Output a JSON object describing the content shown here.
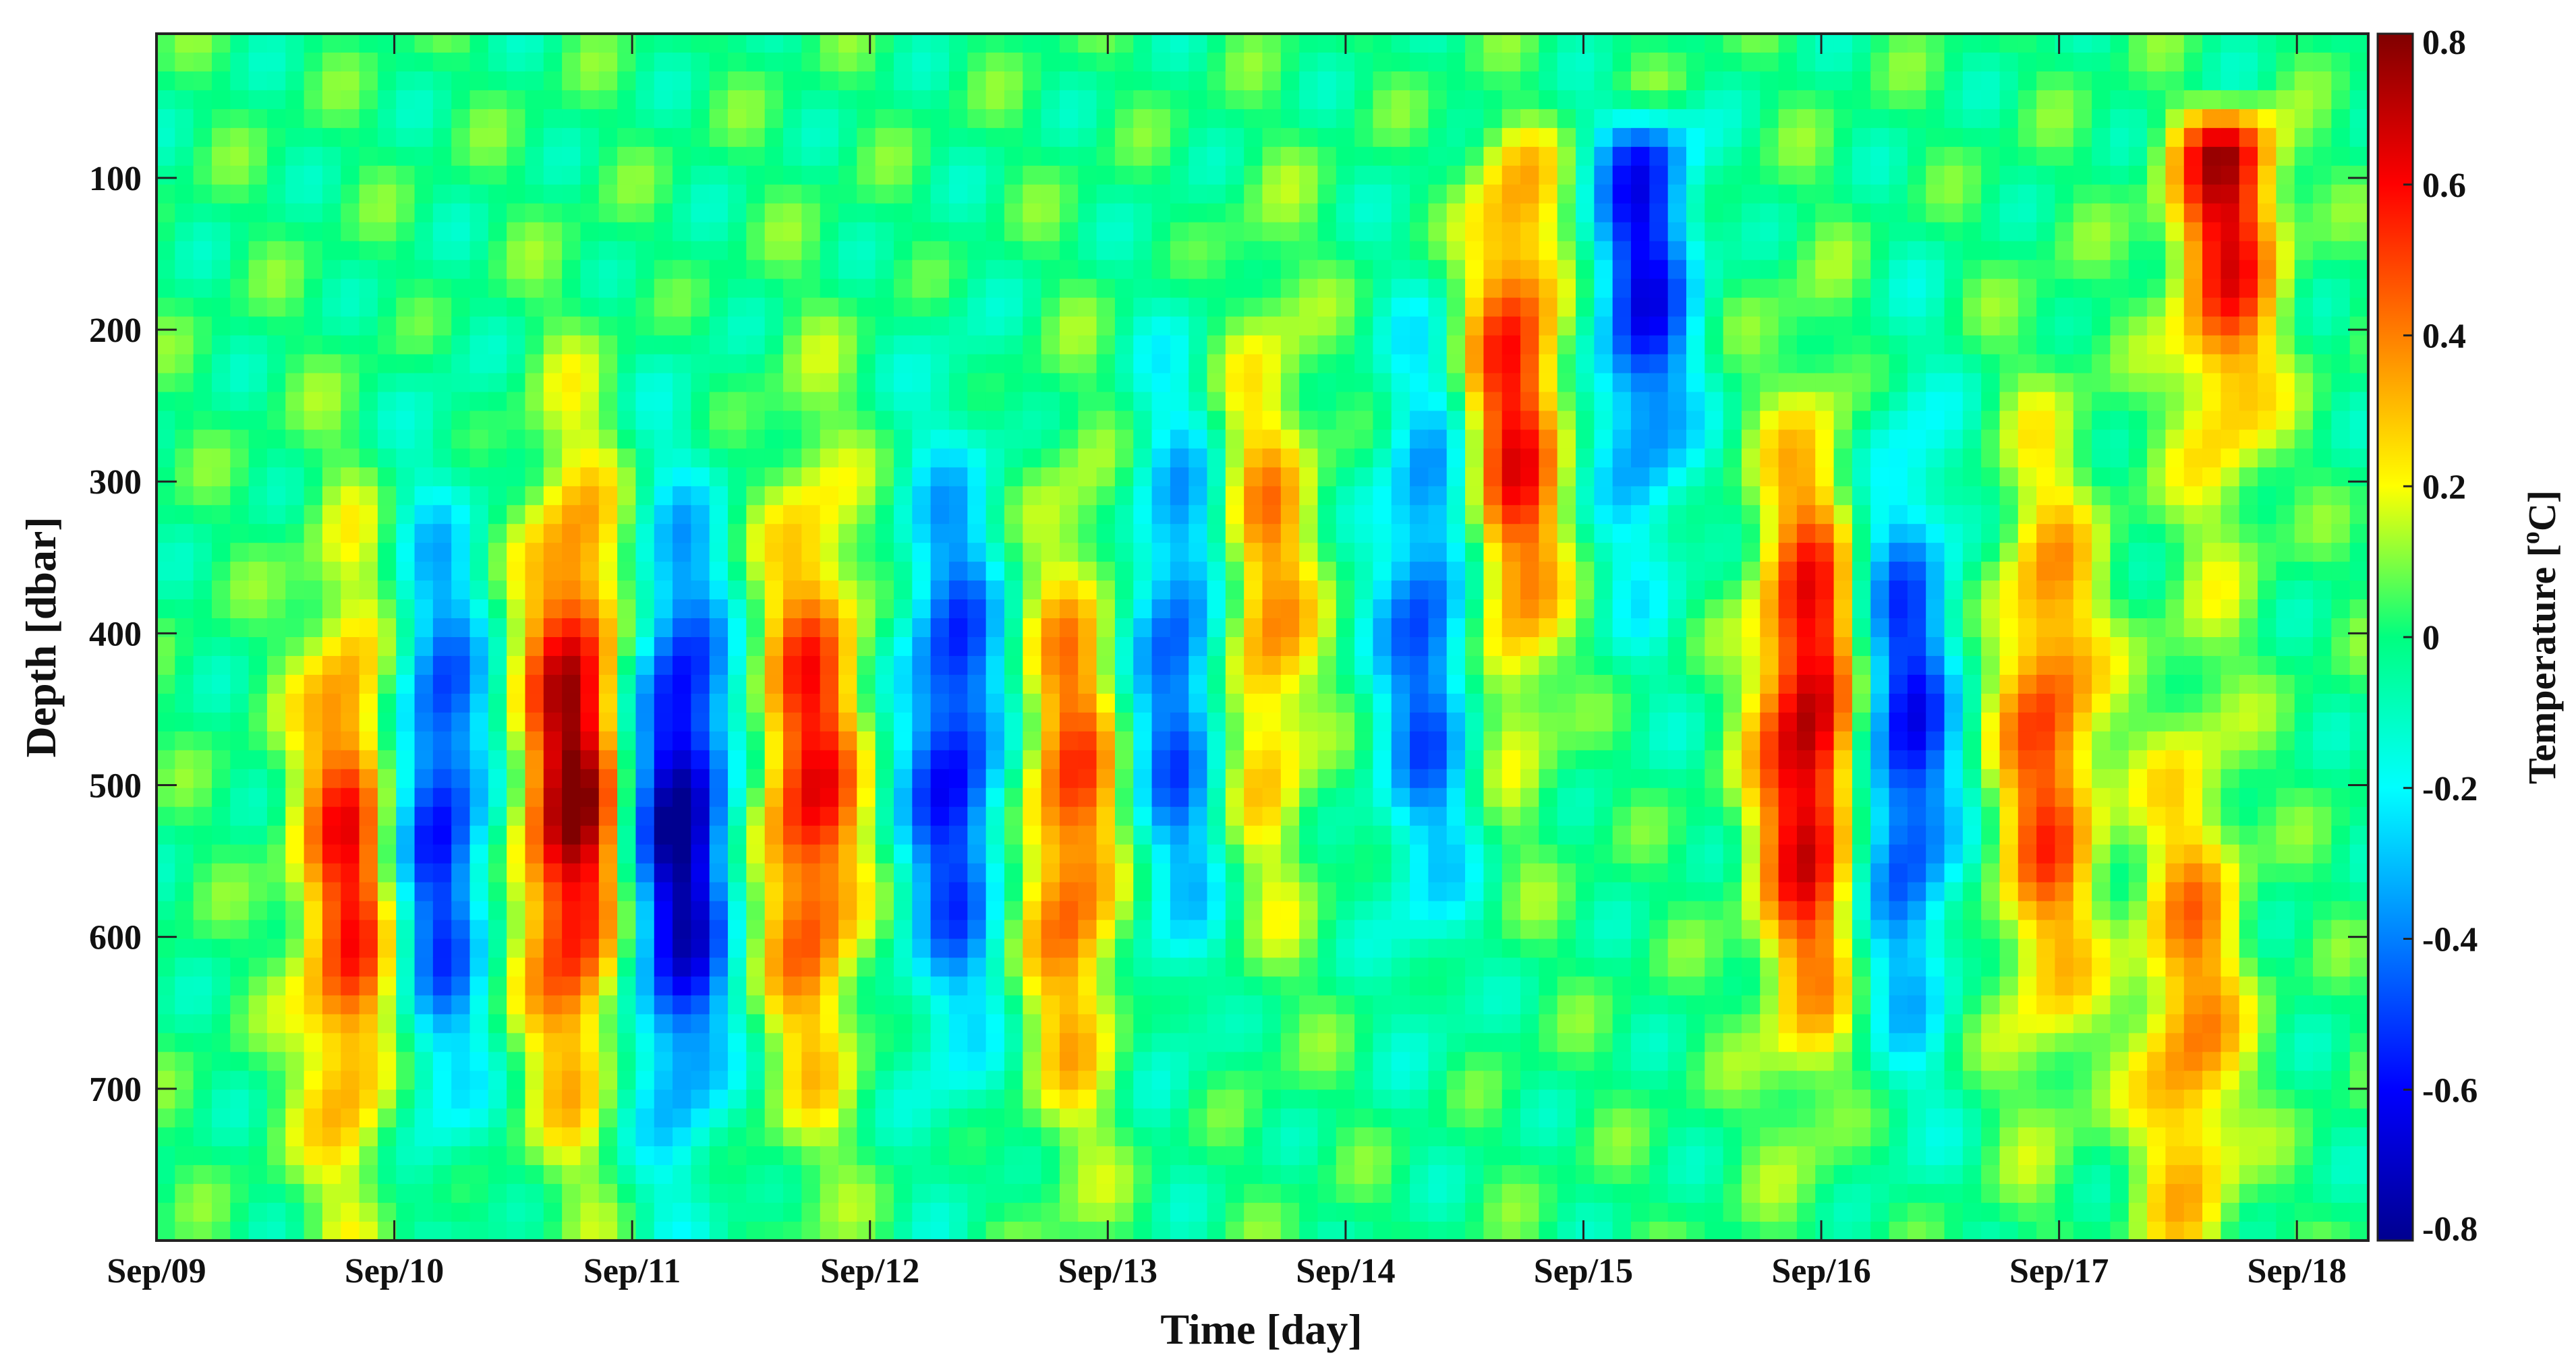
{
  "chart_data": {
    "type": "heatmap",
    "title": "",
    "xlabel": "Time [day]",
    "ylabel": "Depth [dbar]",
    "x_ticks": [
      "Sep/09",
      "Sep/10",
      "Sep/11",
      "Sep/12",
      "Sep/13",
      "Sep/14",
      "Sep/15",
      "Sep/16",
      "Sep/17",
      "Sep/18"
    ],
    "y_ticks": [
      100,
      200,
      300,
      400,
      500,
      600,
      700
    ],
    "xlim": [
      "Sep/09",
      "Sep/18 07:00"
    ],
    "ylim": [
      5,
      800
    ],
    "y_reversed": true,
    "colormap": "jet",
    "colorbar": {
      "label_main": "Temperature [",
      "label_sup": "o",
      "label_end": "C]",
      "ticks": [
        "0.8",
        "0.6",
        "0.4",
        "0.2",
        "0",
        "-0.2",
        "-0.4",
        "-0.6",
        "-0.8"
      ],
      "range": [
        -0.8,
        0.8
      ]
    },
    "features": [
      {
        "day": 0.82,
        "depth": 560,
        "amp": 0.6
      },
      {
        "day": 1.18,
        "depth": 520,
        "amp": -0.6
      },
      {
        "day": 1.75,
        "depth": 500,
        "amp": 0.8
      },
      {
        "day": 2.2,
        "depth": 530,
        "amp": -0.8
      },
      {
        "day": 2.75,
        "depth": 500,
        "amp": 0.6
      },
      {
        "day": 3.35,
        "depth": 480,
        "amp": -0.6
      },
      {
        "day": 3.85,
        "depth": 520,
        "amp": 0.5
      },
      {
        "day": 4.3,
        "depth": 430,
        "amp": -0.5
      },
      {
        "day": 4.65,
        "depth": 380,
        "amp": 0.4
      },
      {
        "day": 5.35,
        "depth": 400,
        "amp": -0.5
      },
      {
        "day": 5.7,
        "depth": 260,
        "amp": 0.6
      },
      {
        "day": 6.25,
        "depth": 150,
        "amp": -0.6
      },
      {
        "day": 6.95,
        "depth": 470,
        "amp": 0.75
      },
      {
        "day": 7.35,
        "depth": 470,
        "amp": -0.6
      },
      {
        "day": 7.95,
        "depth": 480,
        "amp": 0.5
      },
      {
        "day": 8.55,
        "depth": 650,
        "amp": 0.4
      },
      {
        "day": 8.7,
        "depth": 80,
        "amp": 0.7
      }
    ]
  }
}
